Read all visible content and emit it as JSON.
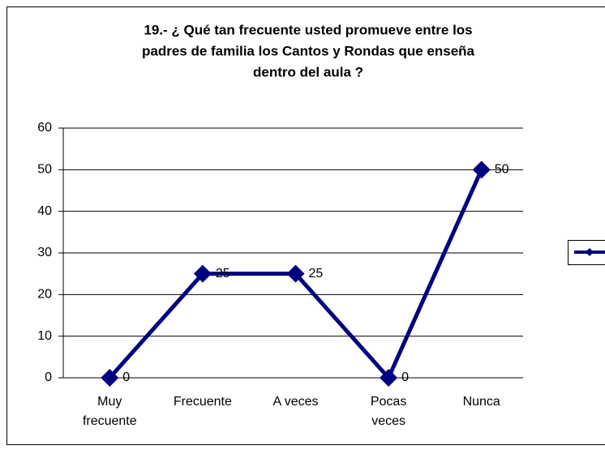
{
  "chart_data": {
    "type": "line",
    "title": [
      "19.- ¿ Qué tan frecuente usted promueve entre los",
      "padres de familia los Cantos y Rondas que enseña",
      "dentro del aula ?"
    ],
    "categories": [
      "Muy frecuente",
      "Frecuente",
      "A veces",
      "Pocas veces",
      "Nunca"
    ],
    "series": [
      {
        "color": "#000080",
        "values": [
          0,
          25,
          25,
          0,
          50
        ]
      }
    ],
    "ylim": [
      0,
      60
    ],
    "yticks": [
      0,
      10,
      20,
      30,
      40,
      50,
      60
    ],
    "grid": true,
    "legend": "right"
  }
}
